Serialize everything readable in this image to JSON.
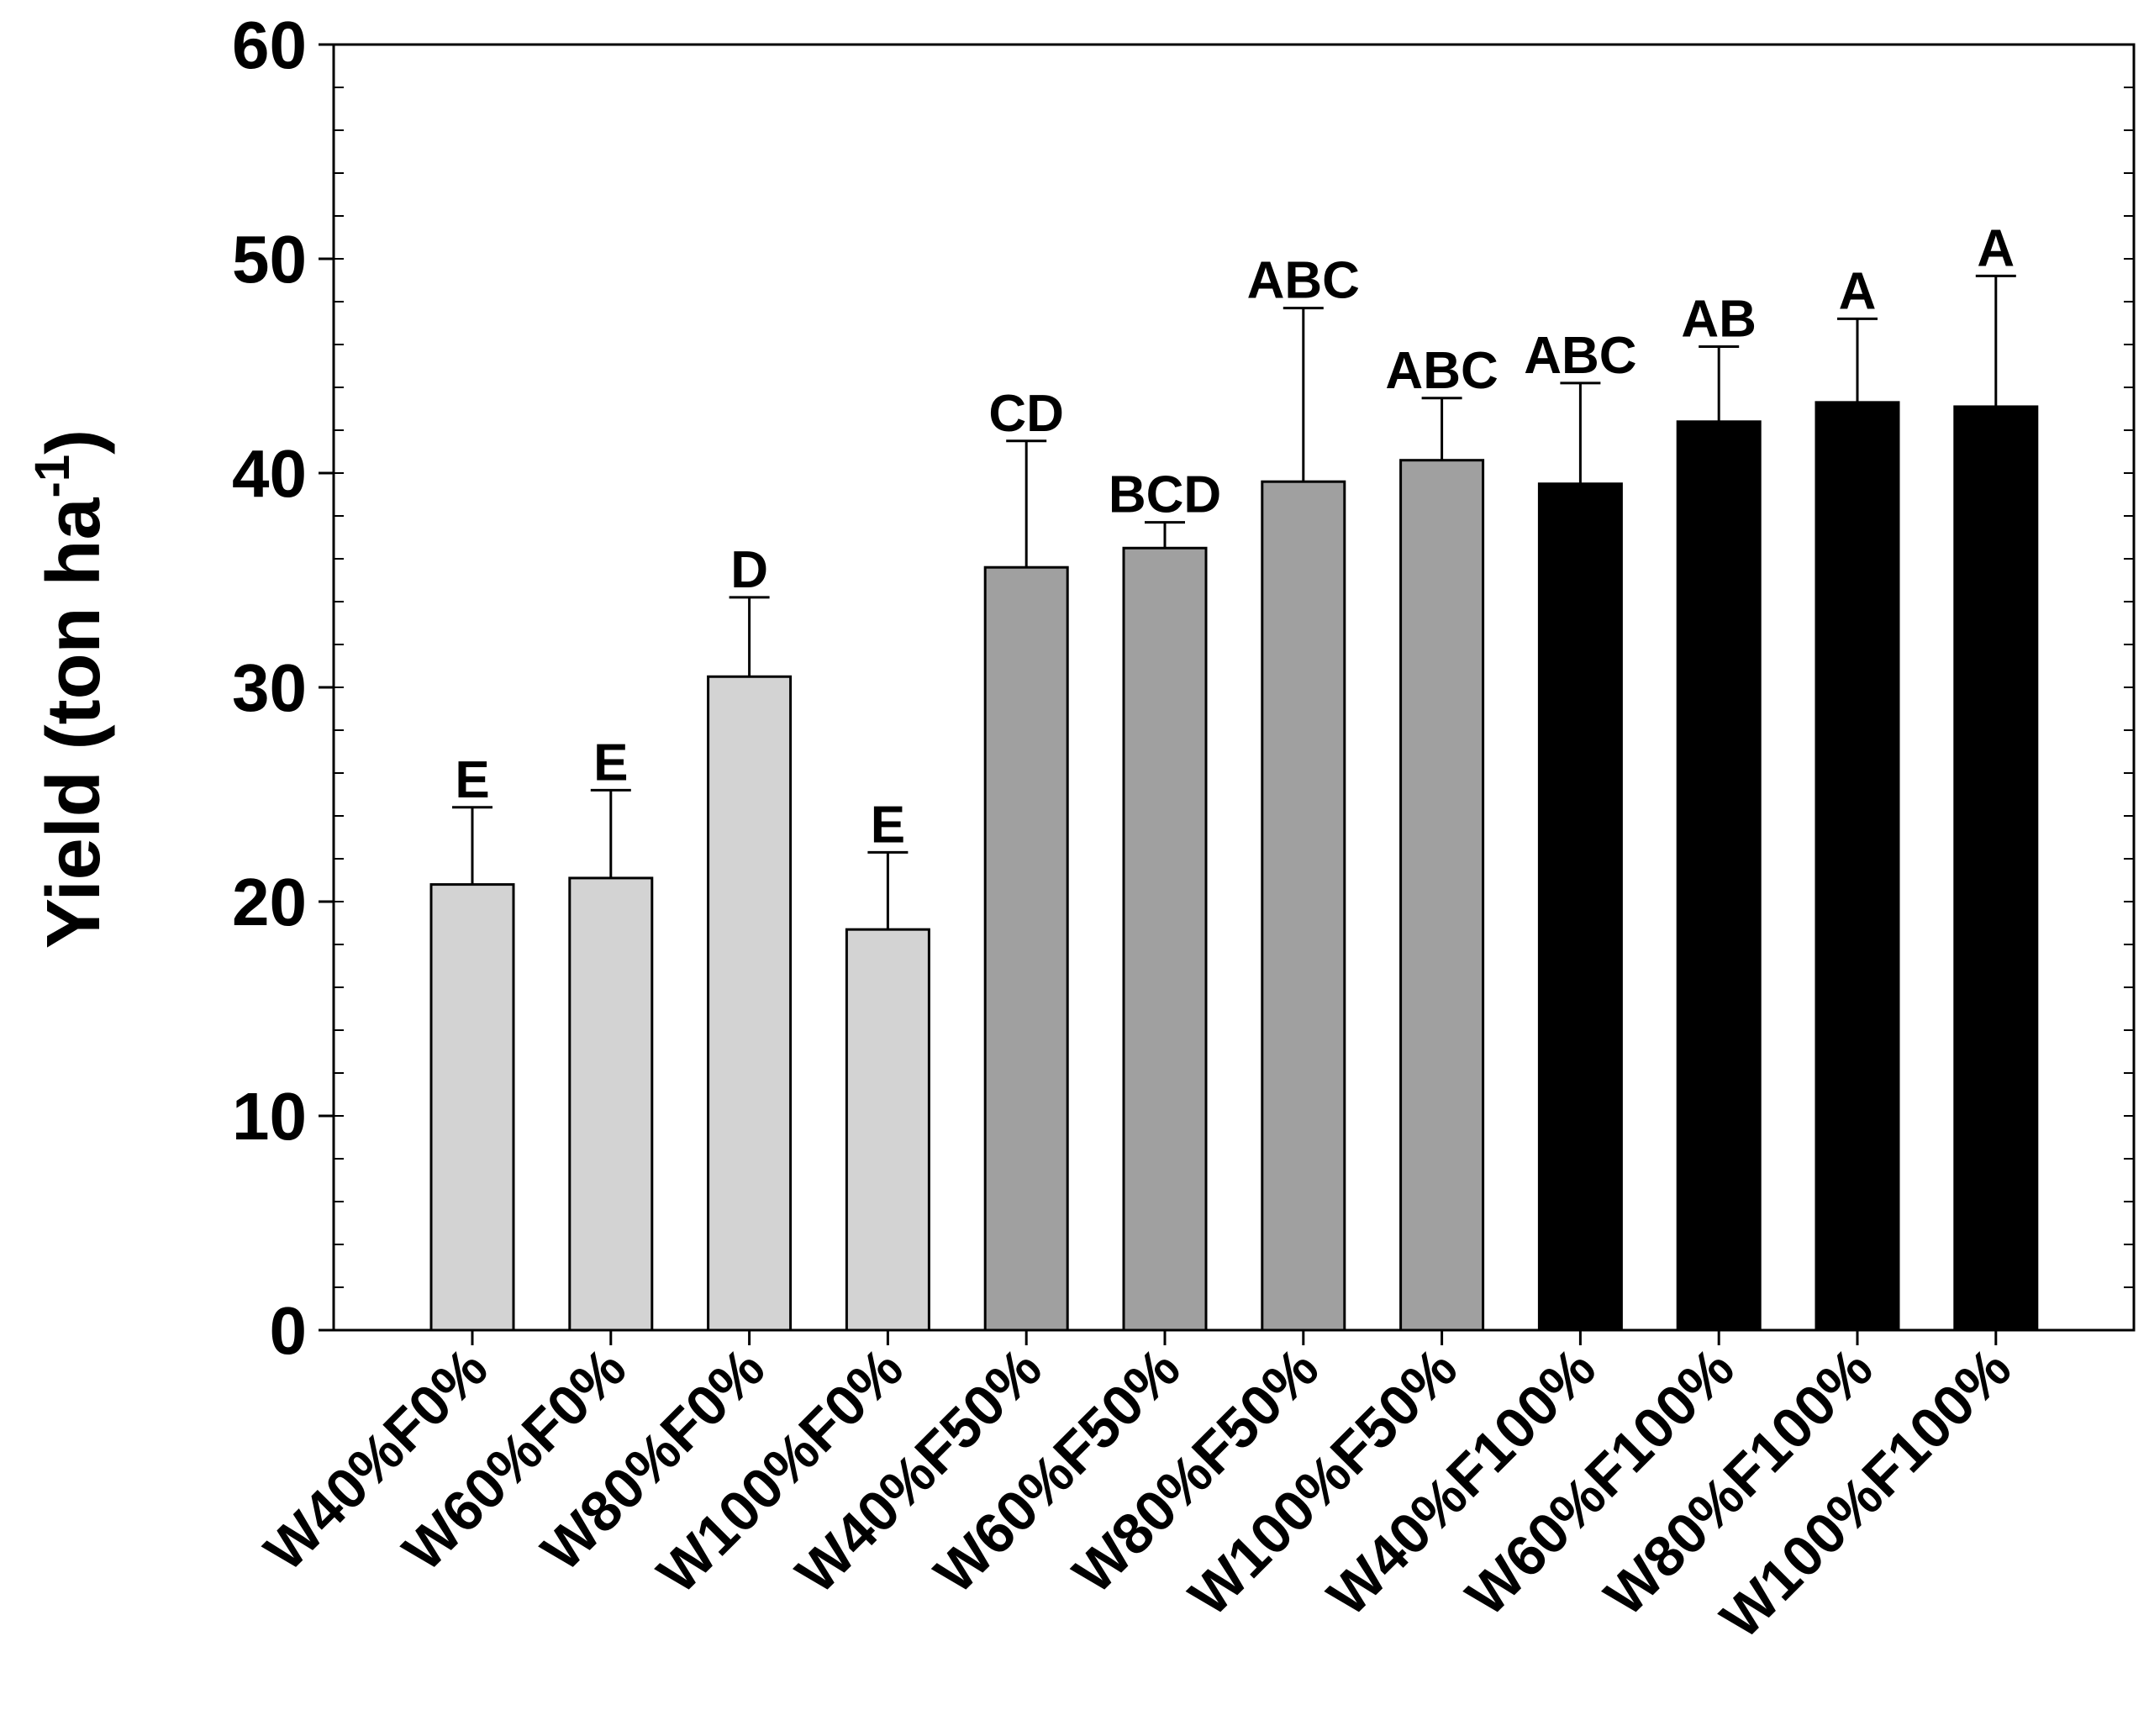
{
  "chart_data": {
    "type": "bar",
    "title": "",
    "xlabel": "",
    "ylabel": {
      "main": "Yield (ton ha",
      "superscript": "-1",
      "suffix": ")"
    },
    "ylim": [
      0,
      60
    ],
    "yticks": [
      0,
      10,
      20,
      30,
      40,
      50,
      60
    ],
    "categories": [
      "W40%F0%",
      "W60%F0%",
      "W80%F0%",
      "W100%F0%",
      "W40%F50%",
      "W60%F50%",
      "W80%F50%",
      "W100%F50%",
      "W40%F100%",
      "W60%F100%",
      "W80%F100%",
      "W100%F100%"
    ],
    "values": [
      20.8,
      21.1,
      30.5,
      18.7,
      35.6,
      36.5,
      39.6,
      40.6,
      39.5,
      42.4,
      43.3,
      43.1
    ],
    "errors": [
      3.6,
      4.1,
      3.7,
      3.6,
      5.9,
      1.2,
      8.1,
      2.9,
      4.7,
      3.5,
      3.9,
      6.1
    ],
    "letters": [
      "E",
      "E",
      "D",
      "E",
      "CD",
      "BCD",
      "ABC",
      "ABC",
      "ABC",
      "AB",
      "A",
      "A"
    ],
    "bar_colors": [
      "#d3d3d3",
      "#d3d3d3",
      "#d3d3d3",
      "#d3d3d3",
      "#a0a0a0",
      "#a0a0a0",
      "#a0a0a0",
      "#a0a0a0",
      "#000000",
      "#000000",
      "#000000",
      "#000000"
    ],
    "grid": false,
    "legend": "none"
  }
}
